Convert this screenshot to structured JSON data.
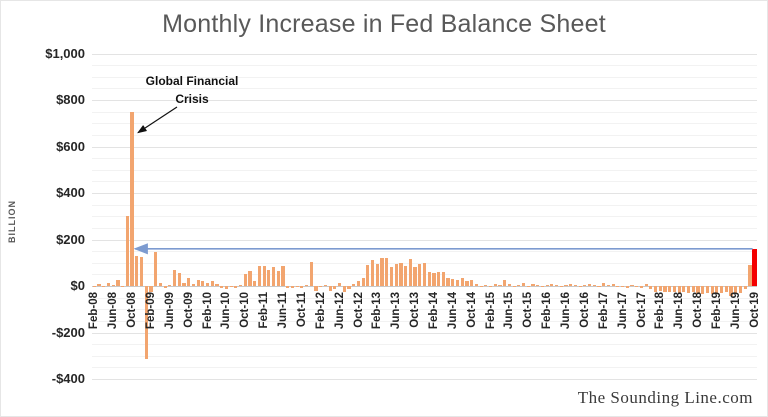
{
  "watermark": "The Sounding Line.com",
  "chart_data": {
    "type": "bar",
    "title": "Monthly Increase in Fed Balance Sheet",
    "ylabel": "BILLION",
    "units": "USD billions",
    "ylim": [
      -400,
      1000
    ],
    "grid": "on",
    "minor_grid_step": 50,
    "major_grid_step": 200,
    "x_tick_every": 4,
    "bar_color": "#f2a56f",
    "highlight": {
      "month": "Oct-19",
      "color": "#f40000"
    },
    "reference_line": {
      "value": 160,
      "from_month": "Oct-19",
      "to_month": "Oct-08",
      "color": "#7d9bd0"
    },
    "annotation": {
      "text": "Global Financial Crisis",
      "points_to_month": "Oct-08"
    },
    "y_ticks": [
      {
        "value": 1000,
        "label": "$1,000"
      },
      {
        "value": 800,
        "label": "$800"
      },
      {
        "value": 600,
        "label": "$600"
      },
      {
        "value": 400,
        "label": "$400"
      },
      {
        "value": 200,
        "label": "$200"
      },
      {
        "value": 0,
        "label": "$0"
      },
      {
        "value": -200,
        "label": "-$200"
      },
      {
        "value": -400,
        "label": "-$400"
      }
    ],
    "x": [
      "Feb-08",
      "Mar-08",
      "Apr-08",
      "May-08",
      "Jun-08",
      "Jul-08",
      "Aug-08",
      "Sep-08",
      "Oct-08",
      "Nov-08",
      "Dec-08",
      "Jan-09",
      "Feb-09",
      "Mar-09",
      "Apr-09",
      "May-09",
      "Jun-09",
      "Jul-09",
      "Aug-09",
      "Sep-09",
      "Oct-09",
      "Nov-09",
      "Dec-09",
      "Jan-10",
      "Feb-10",
      "Mar-10",
      "Apr-10",
      "May-10",
      "Jun-10",
      "Jul-10",
      "Aug-10",
      "Sep-10",
      "Oct-10",
      "Nov-10",
      "Dec-10",
      "Jan-11",
      "Feb-11",
      "Mar-11",
      "Apr-11",
      "May-11",
      "Jun-11",
      "Jul-11",
      "Aug-11",
      "Sep-11",
      "Oct-11",
      "Nov-11",
      "Dec-11",
      "Jan-12",
      "Feb-12",
      "Mar-12",
      "Apr-12",
      "May-12",
      "Jun-12",
      "Jul-12",
      "Aug-12",
      "Sep-12",
      "Oct-12",
      "Nov-12",
      "Dec-12",
      "Jan-13",
      "Feb-13",
      "Mar-13",
      "Apr-13",
      "May-13",
      "Jun-13",
      "Jul-13",
      "Aug-13",
      "Sep-13",
      "Oct-13",
      "Nov-13",
      "Dec-13",
      "Jan-14",
      "Feb-14",
      "Mar-14",
      "Apr-14",
      "May-14",
      "Jun-14",
      "Jul-14",
      "Aug-14",
      "Sep-14",
      "Oct-14",
      "Nov-14",
      "Dec-14",
      "Jan-15",
      "Feb-15",
      "Mar-15",
      "Apr-15",
      "May-15",
      "Jun-15",
      "Jul-15",
      "Aug-15",
      "Sep-15",
      "Oct-15",
      "Nov-15",
      "Dec-15",
      "Jan-16",
      "Feb-16",
      "Mar-16",
      "Apr-16",
      "May-16",
      "Jun-16",
      "Jul-16",
      "Aug-16",
      "Sep-16",
      "Oct-16",
      "Nov-16",
      "Dec-16",
      "Jan-17",
      "Feb-17",
      "Mar-17",
      "Apr-17",
      "May-17",
      "Jun-17",
      "Jul-17",
      "Aug-17",
      "Sep-17",
      "Oct-17",
      "Nov-17",
      "Dec-17",
      "Jan-18",
      "Feb-18",
      "Mar-18",
      "Apr-18",
      "May-18",
      "Jun-18",
      "Jul-18",
      "Aug-18",
      "Sep-18",
      "Oct-18",
      "Nov-18",
      "Dec-18",
      "Jan-19",
      "Feb-19",
      "Mar-19",
      "Apr-19",
      "May-19",
      "Jun-19",
      "Jul-19",
      "Aug-19",
      "Sep-19",
      "Oct-19"
    ],
    "values": [
      -5,
      10,
      -5,
      15,
      5,
      25,
      -5,
      300,
      750,
      130,
      125,
      -315,
      -25,
      145,
      15,
      -10,
      5,
      70,
      55,
      15,
      35,
      10,
      25,
      20,
      15,
      20,
      10,
      -10,
      -15,
      -5,
      -10,
      5,
      50,
      65,
      20,
      85,
      85,
      70,
      80,
      65,
      85,
      -10,
      -10,
      -5,
      -10,
      5,
      105,
      -20,
      -5,
      5,
      -20,
      -15,
      15,
      -25,
      -15,
      10,
      20,
      35,
      90,
      110,
      95,
      120,
      120,
      80,
      95,
      100,
      85,
      115,
      80,
      95,
      100,
      60,
      55,
      60,
      60,
      35,
      30,
      25,
      35,
      20,
      25,
      10,
      -5,
      5,
      -5,
      10,
      5,
      25,
      10,
      -5,
      5,
      15,
      -5,
      10,
      5,
      -5,
      5,
      10,
      5,
      -5,
      5,
      10,
      5,
      -5,
      5,
      10,
      5,
      -5,
      15,
      5,
      10,
      -5,
      -5,
      -10,
      5,
      -5,
      -10,
      10,
      -15,
      -25,
      -20,
      -25,
      -25,
      -25,
      -30,
      -25,
      -30,
      -25,
      -35,
      -35,
      -30,
      -35,
      -30,
      -30,
      -25,
      -45,
      -35,
      -30,
      -15,
      90,
      160
    ]
  }
}
